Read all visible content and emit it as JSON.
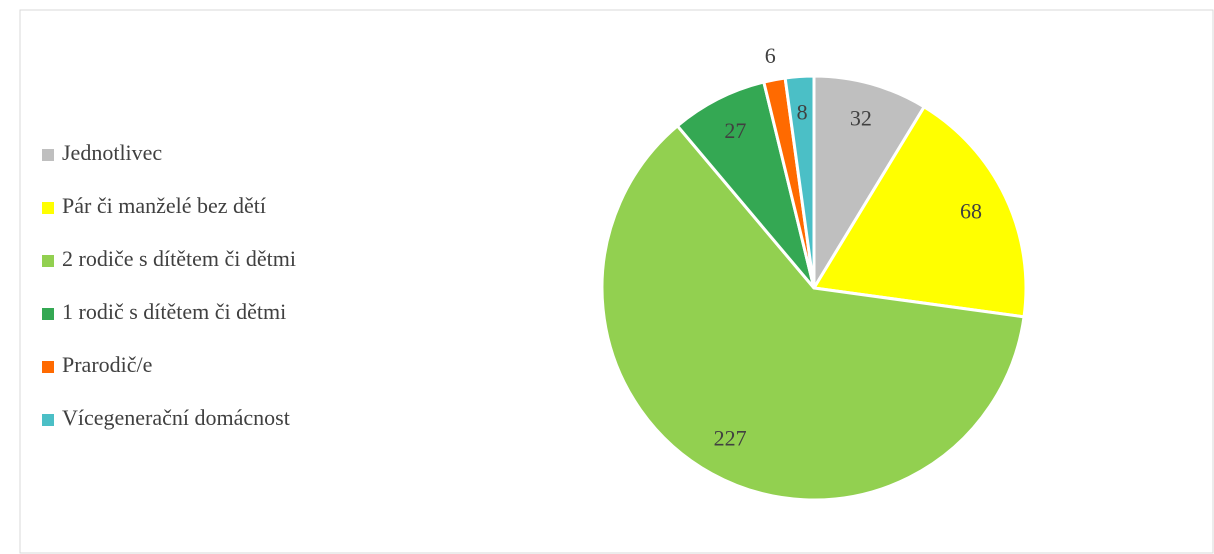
{
  "chart_data": {
    "type": "pie",
    "categories": [
      "Jednotlivec",
      "Pár či manželé bez dětí",
      "2 rodiče s dítětem či dětmi",
      "1 rodič s dítětem či dětmi",
      "Prarodič/e",
      "Vícegenerační domácnost"
    ],
    "values": [
      32,
      68,
      227,
      27,
      6,
      8
    ],
    "colors": [
      "#bfbfbf",
      "#ffff00",
      "#92d050",
      "#34a853",
      "#ff6a00",
      "#4bbfc6"
    ],
    "legend": "left"
  }
}
